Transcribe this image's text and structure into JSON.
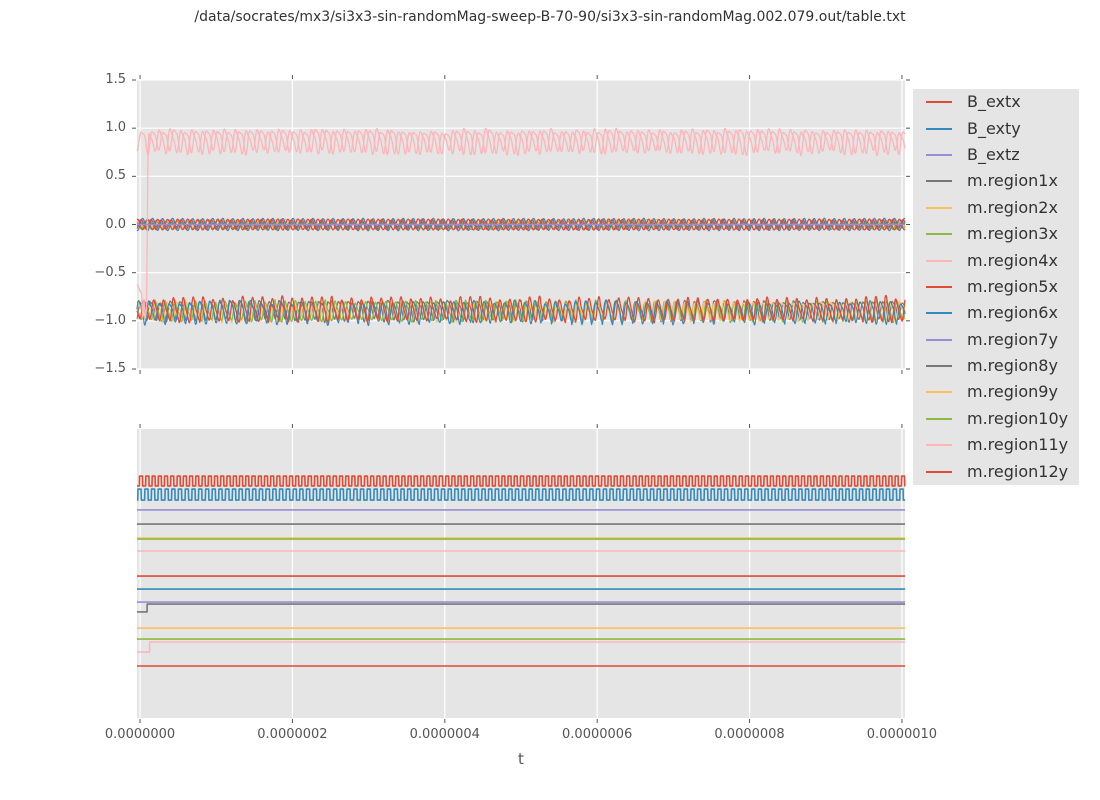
{
  "title": "/data/socrates/mx3/si3x3-sin-randomMag-sweep-B-70-90/si3x3-sin-randomMag.002.079.out/table.txt",
  "xlabel": "t",
  "legend": {
    "entries": [
      {
        "label": "B_extx",
        "color": "#E24A33"
      },
      {
        "label": "B_exty",
        "color": "#348ABD"
      },
      {
        "label": "B_extz",
        "color": "#988ED5"
      },
      {
        "label": "m.region1x",
        "color": "#777777"
      },
      {
        "label": "m.region2x",
        "color": "#FBC15E"
      },
      {
        "label": "m.region3x",
        "color": "#8EBA42"
      },
      {
        "label": "m.region4x",
        "color": "#FFB5B8"
      },
      {
        "label": "m.region5x",
        "color": "#E24A33"
      },
      {
        "label": "m.region6x",
        "color": "#348ABD"
      },
      {
        "label": "m.region7y",
        "color": "#988ED5"
      },
      {
        "label": "m.region8y",
        "color": "#777777"
      },
      {
        "label": "m.region9y",
        "color": "#FBC15E"
      },
      {
        "label": "m.region10y",
        "color": "#8EBA42"
      },
      {
        "label": "m.region11y",
        "color": "#FFB5B8"
      },
      {
        "label": "m.region12y",
        "color": "#E24A33"
      }
    ]
  },
  "chart_data": {
    "type": "line",
    "representation": "parametric-waveforms (u = t / 1e-6 s)",
    "x_axis": {
      "label": "t",
      "t_max_seconds": 1e-06,
      "u_min": -0.004,
      "u_max": 1.004,
      "ticks_u": [
        0,
        0.2,
        0.4,
        0.6,
        0.8,
        1.0
      ],
      "tick_labels": [
        "0.0000000",
        "0.0000002",
        "0.0000004",
        "0.0000006",
        "0.0000008",
        "0.0000010"
      ]
    },
    "style": {
      "plot_bg": "#e5e5e5",
      "grid_color": "#ffffff",
      "tick_color": "#555555"
    },
    "subplots": [
      {
        "id": "top",
        "ylim": [
          -1.5,
          1.5
        ],
        "yticks": [
          1.5,
          1.0,
          0.5,
          0.0,
          -0.5,
          -1.0,
          -1.5
        ],
        "ytick_labels": [
          "1.5",
          "1.0",
          "0.5",
          "0.0",
          "−0.5",
          "−1.0",
          "−1.5"
        ],
        "grid_y": true,
        "y_tick_marks": true,
        "series": [
          {
            "name": "m.region9y",
            "color": "#FBC15E",
            "lw": 1.2,
            "segs": [
              {
                "kind": "sine",
                "c": 78,
                "ph": 2.0,
                "cen": 0.005,
                "amp": 0.045,
                "h2": 0.15,
                "jit": 0.25,
                "seed": 9
              }
            ]
          },
          {
            "name": "m.region10y",
            "color": "#8EBA42",
            "lw": 1.2,
            "segs": [
              {
                "kind": "sine",
                "c": 74,
                "ph": 4.1,
                "cen": -0.005,
                "amp": 0.04,
                "h2": 0.15,
                "jit": 0.25,
                "seed": 10
              }
            ]
          },
          {
            "name": "m.region8y",
            "color": "#777777",
            "lw": 1.2,
            "segs": [
              {
                "kind": "sine",
                "c": 76,
                "ph": 1.0,
                "cen": 0.0,
                "amp": 0.02,
                "h2": 0.1,
                "jit": 0.2,
                "seed": 8
              }
            ]
          },
          {
            "name": "B_extx",
            "color": "#E24A33",
            "lw": 1.3,
            "segs": [
              {
                "kind": "sine",
                "c": 76,
                "ph": 3.1416,
                "cen": 0.0,
                "amp": 0.055,
                "h2": 0,
                "jit": 0.08,
                "seed": 20
              }
            ]
          },
          {
            "name": "B_exty",
            "color": "#348ABD",
            "lw": 1.3,
            "segs": [
              {
                "kind": "sine",
                "c": 76,
                "ph": 0.0,
                "cen": 0.0,
                "amp": 0.062,
                "h2": 0,
                "jit": 0.08,
                "seed": 21
              }
            ]
          },
          {
            "name": "B_extz",
            "color": "#988ED5",
            "lw": 1.3,
            "segs": [
              {
                "kind": "steps",
                "pts": [
                  [
                    -0.004,
                    0.0
                  ]
                ]
              }
            ]
          },
          {
            "name": "m.region1x",
            "color": "#777777",
            "lw": 1.2,
            "segs": [
              {
                "kind": "sine",
                "c": 77,
                "ph": 0.7,
                "cen": -0.88,
                "amp": 0.09,
                "h2": 0.3,
                "jit": 0.35,
                "seed": 1
              }
            ]
          },
          {
            "name": "m.region2x",
            "color": "#FBC15E",
            "lw": 1.2,
            "segs": [
              {
                "kind": "sine",
                "c": 78,
                "ph": 2.6,
                "cen": -0.895,
                "amp": 0.085,
                "h2": 0.3,
                "jit": 0.35,
                "seed": 2
              }
            ]
          },
          {
            "name": "m.region3x",
            "color": "#8EBA42",
            "lw": 1.2,
            "segs": [
              {
                "kind": "sine",
                "c": 76,
                "ph": 4.4,
                "cen": -0.9,
                "amp": 0.088,
                "h2": 0.3,
                "jit": 0.35,
                "seed": 3
              }
            ]
          },
          {
            "name": "m.region6x",
            "color": "#348ABD",
            "lw": 1.2,
            "segs": [
              {
                "kind": "sine",
                "c": 75,
                "ph": 1.9,
                "cen": -0.9,
                "amp": 0.1,
                "h2": 0.25,
                "jit": 0.4,
                "seed": 6
              }
            ]
          },
          {
            "name": "m.region5x",
            "color": "#E24A33",
            "lw": 1.3,
            "segs": [
              {
                "kind": "sine",
                "c": 77,
                "ph": 5.2,
                "cen": -0.885,
                "amp": 0.105,
                "h2": 0.25,
                "jit": 0.4,
                "seed": 5
              }
            ]
          },
          {
            "name": "m.region4x",
            "color": "#FFB5B8",
            "lw": 1.3,
            "segs": [
              {
                "kind": "sine",
                "c": 70,
                "ph": 0.3,
                "cen": 0.878,
                "amp": 0.105,
                "h2": 0.3,
                "jit": 0.4,
                "seed": 4
              }
            ]
          },
          {
            "name": "m.region12y",
            "color": "#E24A33",
            "lw": 1.2,
            "segs": [
              {
                "kind": "sine",
                "c": 76,
                "ph": 0.9,
                "cen": 0.0,
                "amp": 0.05,
                "h2": 0,
                "jit": 0.15,
                "seed": 12
              }
            ]
          },
          {
            "name": "m.region11y",
            "color": "#FFB5B8",
            "lw": 1.3,
            "segs": [
              {
                "kind": "poly",
                "pts": [
                  [
                    -0.004,
                    -0.62
                  ],
                  [
                    0.002,
                    -0.72
                  ],
                  [
                    0.0035,
                    -0.96
                  ],
                  [
                    0.005,
                    -0.78
                  ],
                  [
                    0.007,
                    -0.97
                  ],
                  [
                    0.0085,
                    -0.88
                  ],
                  [
                    0.0105,
                    0.72
                  ],
                  [
                    0.0115,
                    0.95
                  ]
                ]
              },
              {
                "kind": "sine",
                "u0": 0.0115,
                "c": 70,
                "ph": 2.6,
                "cen": 0.872,
                "amp": 0.1,
                "h2": 0.3,
                "jit": 0.4,
                "seed": 11
              }
            ]
          },
          {
            "name": "m.region7y",
            "color": "#988ED5",
            "lw": 1.4,
            "segs": [
              {
                "kind": "steps",
                "pts": [
                  [
                    -0.004,
                    0.0
                  ]
                ]
              }
            ]
          }
        ]
      },
      {
        "id": "bottom",
        "ylim": [
          0,
          1
        ],
        "yticks": [],
        "ytick_labels": [],
        "grid_y": false,
        "y_tick_marks": false,
        "series": [
          {
            "name": "B_extx",
            "color": "#E24A33",
            "lw": 1.6,
            "segs": [
              {
                "kind": "square",
                "c": 122,
                "ph": 0.5,
                "cen": 0.82,
                "amp": 0.017
              }
            ]
          },
          {
            "name": "B_exty",
            "color": "#348ABD",
            "lw": 1.6,
            "segs": [
              {
                "kind": "square",
                "c": 113,
                "ph": 2.0,
                "cen": 0.773,
                "amp": 0.019
              }
            ]
          },
          {
            "name": "B_extz",
            "color": "#988ED5",
            "lw": 1.6,
            "segs": [
              {
                "kind": "steps",
                "pts": [
                  [
                    -0.004,
                    0.72
                  ]
                ]
              }
            ]
          },
          {
            "name": "m.region1x",
            "color": "#777777",
            "lw": 1.6,
            "segs": [
              {
                "kind": "steps",
                "pts": [
                  [
                    -0.004,
                    0.671
                  ]
                ]
              }
            ]
          },
          {
            "name": "m.region2x",
            "color": "#FBC15E",
            "lw": 1.6,
            "segs": [
              {
                "kind": "steps",
                "pts": [
                  [
                    -0.004,
                    0.623
                  ]
                ]
              }
            ]
          },
          {
            "name": "m.region3x",
            "color": "#8EBA42",
            "lw": 1.6,
            "segs": [
              {
                "kind": "steps",
                "pts": [
                  [
                    -0.004,
                    0.619
                  ]
                ]
              }
            ]
          },
          {
            "name": "m.region4x",
            "color": "#FFB5B8",
            "lw": 1.6,
            "segs": [
              {
                "kind": "steps",
                "pts": [
                  [
                    -0.004,
                    0.578
                  ]
                ]
              }
            ]
          },
          {
            "name": "m.region5x",
            "color": "#E24A33",
            "lw": 1.6,
            "segs": [
              {
                "kind": "steps",
                "pts": [
                  [
                    -0.004,
                    0.491
                  ]
                ]
              }
            ]
          },
          {
            "name": "m.region6x",
            "color": "#348ABD",
            "lw": 1.6,
            "segs": [
              {
                "kind": "steps",
                "pts": [
                  [
                    -0.004,
                    0.446
                  ]
                ]
              }
            ]
          },
          {
            "name": "m.region7y",
            "color": "#988ED5",
            "lw": 1.6,
            "segs": [
              {
                "kind": "steps",
                "pts": [
                  [
                    -0.004,
                    0.401
                  ]
                ]
              }
            ]
          },
          {
            "name": "m.region8y",
            "color": "#777777",
            "lw": 1.6,
            "segs": [
              {
                "kind": "steps",
                "pts": [
                  [
                    -0.004,
                    0.367
                  ],
                  [
                    0.0092,
                    0.394
                  ]
                ]
              }
            ]
          },
          {
            "name": "m.region9y",
            "color": "#FBC15E",
            "lw": 1.6,
            "segs": [
              {
                "kind": "steps",
                "pts": [
                  [
                    -0.004,
                    0.311
                  ]
                ]
              }
            ]
          },
          {
            "name": "m.region10y",
            "color": "#8EBA42",
            "lw": 1.6,
            "segs": [
              {
                "kind": "steps",
                "pts": [
                  [
                    -0.004,
                    0.273
                  ]
                ]
              }
            ]
          },
          {
            "name": "m.region11y",
            "color": "#FFB5B8",
            "lw": 1.6,
            "segs": [
              {
                "kind": "steps",
                "pts": [
                  [
                    -0.004,
                    0.228
                  ],
                  [
                    0.0125,
                    0.263
                  ]
                ]
              }
            ]
          },
          {
            "name": "m.region12y",
            "color": "#E24A33",
            "lw": 1.6,
            "segs": [
              {
                "kind": "steps",
                "pts": [
                  [
                    -0.004,
                    0.18
                  ]
                ]
              }
            ]
          }
        ]
      }
    ]
  }
}
